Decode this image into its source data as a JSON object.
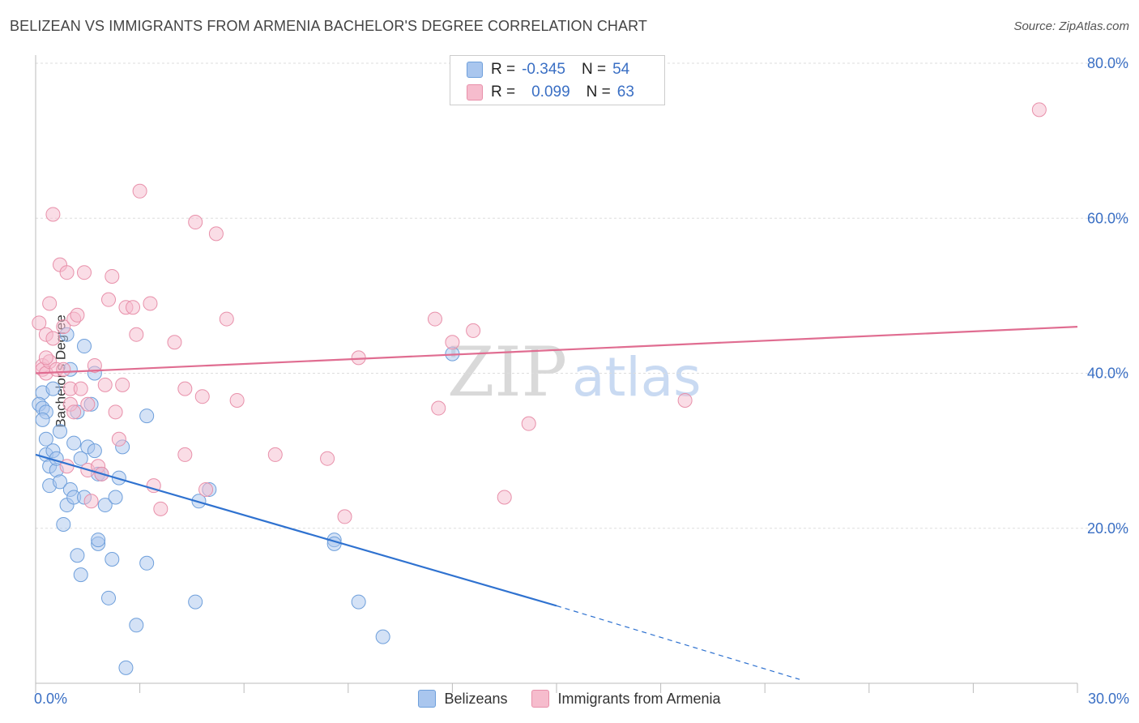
{
  "title": "BELIZEAN VS IMMIGRANTS FROM ARMENIA BACHELOR'S DEGREE CORRELATION CHART",
  "source": "Source: ZipAtlas.com",
  "watermark": "ZIPatlas",
  "colors": {
    "blue_fill": "#a9c6ee",
    "blue_stroke": "#6e9fdb",
    "blue_line": "#2f72d0",
    "pink_fill": "#f6bccd",
    "pink_stroke": "#e890aa",
    "pink_line": "#e06d91",
    "axis_text": "#3a6fc4",
    "grid": "#dddddd"
  },
  "legend_stats": [
    {
      "r_label": "R =",
      "r_value": "-0.345",
      "n_label": "N =",
      "n_value": "54",
      "series": "blue"
    },
    {
      "r_label": "R =",
      "r_value": "0.099",
      "n_label": "N =",
      "n_value": "63",
      "series": "pink"
    }
  ],
  "chart_data": {
    "type": "scatter",
    "title": "BELIZEAN VS IMMIGRANTS FROM ARMENIA BACHELOR'S DEGREE CORRELATION CHART",
    "xlabel": "",
    "ylabel": "Bachelor's Degree",
    "xlim": [
      0,
      30
    ],
    "ylim": [
      0,
      80
    ],
    "x_tick_labels": [
      "0.0%",
      "30.0%"
    ],
    "y_ticks": [
      20,
      40,
      60,
      80
    ],
    "y_tick_labels": [
      "20.0%",
      "40.0%",
      "60.0%",
      "80.0%"
    ],
    "grid": true,
    "series": [
      {
        "name": "Belizeans",
        "color": "blue",
        "r": -0.345,
        "n": 54,
        "trend": {
          "x0": 0,
          "y0": 29.5,
          "x1": 15,
          "y1": 10.0,
          "dash_x1": 22,
          "dash_y1": 0.5
        },
        "points": [
          [
            0.2,
            37.5
          ],
          [
            0.1,
            36
          ],
          [
            0.2,
            35.5
          ],
          [
            0.3,
            35
          ],
          [
            0.2,
            34
          ],
          [
            0.3,
            31.5
          ],
          [
            0.3,
            29.5
          ],
          [
            0.4,
            28
          ],
          [
            0.4,
            25.5
          ],
          [
            0.5,
            30
          ],
          [
            0.6,
            27.5
          ],
          [
            0.6,
            29
          ],
          [
            0.7,
            32.5
          ],
          [
            0.7,
            26
          ],
          [
            0.8,
            20.5
          ],
          [
            0.9,
            23
          ],
          [
            0.9,
            45
          ],
          [
            1.0,
            40.5
          ],
          [
            1.0,
            25
          ],
          [
            1.1,
            31
          ],
          [
            1.1,
            24
          ],
          [
            1.2,
            35
          ],
          [
            1.2,
            16.5
          ],
          [
            1.3,
            14
          ],
          [
            1.3,
            29
          ],
          [
            1.4,
            24
          ],
          [
            1.4,
            43.5
          ],
          [
            1.5,
            30.5
          ],
          [
            1.6,
            36
          ],
          [
            1.7,
            30
          ],
          [
            1.7,
            40
          ],
          [
            1.8,
            27
          ],
          [
            1.8,
            18
          ],
          [
            1.8,
            18.5
          ],
          [
            1.9,
            27
          ],
          [
            2.0,
            23
          ],
          [
            2.1,
            11
          ],
          [
            2.2,
            16
          ],
          [
            2.3,
            24
          ],
          [
            2.4,
            26.5
          ],
          [
            2.5,
            30.5
          ],
          [
            2.6,
            2
          ],
          [
            2.9,
            7.5
          ],
          [
            3.2,
            15.5
          ],
          [
            3.2,
            34.5
          ],
          [
            4.6,
            10.5
          ],
          [
            4.7,
            23.5
          ],
          [
            5.0,
            25
          ],
          [
            8.6,
            18.5
          ],
          [
            8.6,
            18
          ],
          [
            9.3,
            10.5
          ],
          [
            10.0,
            6
          ],
          [
            12.0,
            42.5
          ],
          [
            0.5,
            38
          ]
        ]
      },
      {
        "name": "Immigrants from Armenia",
        "color": "pink",
        "r": 0.099,
        "n": 63,
        "trend": {
          "x0": 0,
          "y0": 40.0,
          "x1": 30,
          "y1": 46.0
        },
        "points": [
          [
            0.1,
            46.5
          ],
          [
            0.2,
            41
          ],
          [
            0.2,
            40.5
          ],
          [
            0.3,
            40
          ],
          [
            0.3,
            45
          ],
          [
            0.4,
            41.5
          ],
          [
            0.4,
            49
          ],
          [
            0.5,
            44.5
          ],
          [
            0.5,
            60.5
          ],
          [
            0.6,
            40.5
          ],
          [
            0.7,
            54
          ],
          [
            0.8,
            46
          ],
          [
            0.8,
            40.5
          ],
          [
            0.9,
            28
          ],
          [
            0.9,
            53
          ],
          [
            1.0,
            36
          ],
          [
            1.0,
            38
          ],
          [
            1.1,
            35
          ],
          [
            1.1,
            47
          ],
          [
            1.2,
            47.5
          ],
          [
            1.3,
            38
          ],
          [
            1.4,
            53
          ],
          [
            1.5,
            27.5
          ],
          [
            1.5,
            36
          ],
          [
            1.6,
            23.5
          ],
          [
            1.7,
            41
          ],
          [
            1.8,
            28
          ],
          [
            1.9,
            27
          ],
          [
            2.0,
            38.5
          ],
          [
            2.1,
            49.5
          ],
          [
            2.2,
            52.5
          ],
          [
            2.3,
            35
          ],
          [
            2.4,
            31.5
          ],
          [
            2.5,
            38.5
          ],
          [
            2.6,
            48.5
          ],
          [
            2.8,
            48.5
          ],
          [
            2.9,
            45
          ],
          [
            3.0,
            63.5
          ],
          [
            3.3,
            49
          ],
          [
            3.4,
            25.5
          ],
          [
            3.6,
            22.5
          ],
          [
            4.0,
            44
          ],
          [
            4.3,
            29.5
          ],
          [
            4.3,
            38
          ],
          [
            4.6,
            59.5
          ],
          [
            4.8,
            37
          ],
          [
            4.9,
            25
          ],
          [
            5.2,
            58
          ],
          [
            5.5,
            47
          ],
          [
            5.8,
            36.5
          ],
          [
            6.9,
            29.5
          ],
          [
            8.4,
            29
          ],
          [
            8.9,
            21.5
          ],
          [
            9.3,
            42
          ],
          [
            11.5,
            47
          ],
          [
            11.6,
            35.5
          ],
          [
            12.0,
            44
          ],
          [
            12.6,
            45.5
          ],
          [
            13.5,
            24
          ],
          [
            14.2,
            33.5
          ],
          [
            18.7,
            36.5
          ],
          [
            28.9,
            74
          ],
          [
            0.3,
            42
          ]
        ]
      }
    ]
  },
  "legend_bottom": [
    {
      "label": "Belizeans",
      "color": "blue"
    },
    {
      "label": "Immigrants from Armenia",
      "color": "pink"
    }
  ]
}
